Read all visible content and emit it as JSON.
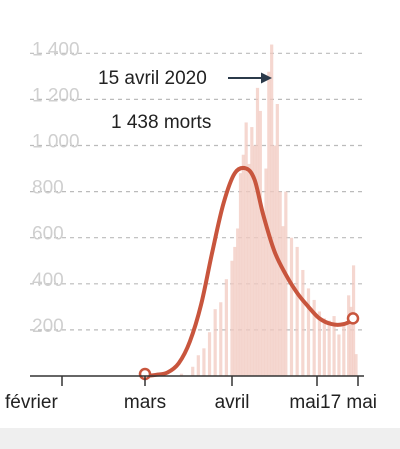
{
  "chart_data": {
    "type": "bar",
    "y_ticks": [
      "200",
      "400",
      "600",
      "800",
      "1 000",
      "1 200",
      "1 400"
    ],
    "y_tick_values": [
      200,
      400,
      600,
      800,
      1000,
      1200,
      1400
    ],
    "ylim": [
      0,
      1500
    ],
    "x_ticks": [
      "février",
      "mars",
      "avril",
      "mai",
      "17 mai"
    ],
    "annotation": {
      "date": "15 avril 2020",
      "text": "1 438 morts",
      "value": 1438
    },
    "series": [
      {
        "kind": "daily-bars",
        "x": [
          "2020-03-14",
          "2020-03-18",
          "2020-03-20",
          "2020-03-22",
          "2020-03-24",
          "2020-03-26",
          "2020-03-28",
          "2020-03-30",
          "2020-04-01",
          "2020-04-02",
          "2020-04-03",
          "2020-04-04",
          "2020-04-05",
          "2020-04-06",
          "2020-04-07",
          "2020-04-08",
          "2020-04-09",
          "2020-04-10",
          "2020-04-11",
          "2020-04-12",
          "2020-04-13",
          "2020-04-14",
          "2020-04-15",
          "2020-04-16",
          "2020-04-17",
          "2020-04-18",
          "2020-04-19",
          "2020-04-20",
          "2020-04-22",
          "2020-04-24",
          "2020-04-26",
          "2020-04-28",
          "2020-04-30",
          "2020-05-02",
          "2020-05-04",
          "2020-05-06",
          "2020-05-08",
          "2020-05-10",
          "2020-05-12",
          "2020-05-14",
          "2020-05-15",
          "2020-05-16",
          "2020-05-17"
        ],
        "values": [
          10,
          40,
          90,
          120,
          190,
          290,
          320,
          420,
          500,
          560,
          640,
          880,
          960,
          1100,
          920,
          1080,
          1000,
          1250,
          1150,
          700,
          900,
          1320,
          1438,
          1000,
          1180,
          800,
          650,
          800,
          600,
          560,
          460,
          380,
          330,
          280,
          250,
          240,
          260,
          180,
          220,
          350,
          300,
          480,
          95
        ]
      },
      {
        "kind": "smoothed-line",
        "color": "#c8553d",
        "x": [
          "2020-03-01",
          "2020-03-05",
          "2020-03-09",
          "2020-03-13",
          "2020-03-17",
          "2020-03-21",
          "2020-03-25",
          "2020-03-29",
          "2020-04-02",
          "2020-04-06",
          "2020-04-09",
          "2020-04-12",
          "2020-04-16",
          "2020-04-20",
          "2020-04-24",
          "2020-04-28",
          "2020-05-02",
          "2020-05-07",
          "2020-05-12",
          "2020-05-17"
        ],
        "values": [
          0,
          5,
          15,
          55,
          150,
          310,
          540,
          750,
          880,
          900,
          850,
          700,
          540,
          440,
          360,
          300,
          250,
          225,
          225,
          250
        ]
      }
    ],
    "colors": {
      "bars": "#f2c9c0",
      "line": "#c8553d",
      "grid": "#bbbbbb",
      "tick_text": "#cfcfcf",
      "axis": "#333333",
      "label_text": "#222222"
    }
  }
}
